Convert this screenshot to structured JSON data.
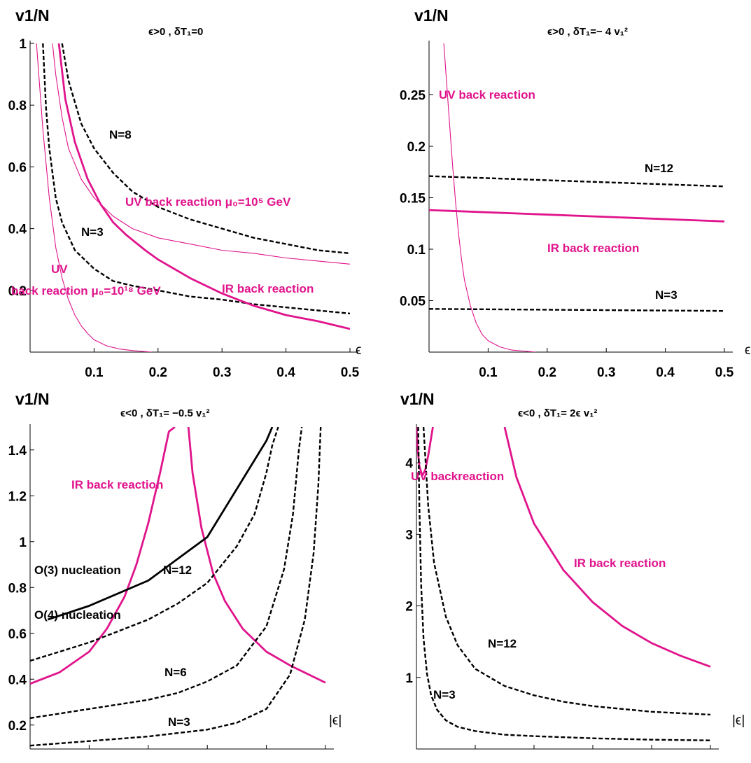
{
  "colors": {
    "black_curve": "#000000",
    "magenta_curve": "#e0148c"
  },
  "chart_data": [
    {
      "type": "line",
      "panel": "top-left",
      "title": "ϵ>0   ,  δT₁=0",
      "ylabel": "v1/N",
      "xlabel": "ϵ",
      "xlim": [
        0,
        0.5
      ],
      "ylim": [
        0,
        1
      ],
      "xticks": [
        "0.1",
        "0.2",
        "0.3",
        "0.4",
        "0.5"
      ],
      "yticks": [
        "0.2",
        "0.4",
        "0.6",
        "0.8",
        "1"
      ],
      "series": [
        {
          "style": "dashed",
          "color": "#000000",
          "x": [
            0.05,
            0.06,
            0.08,
            0.1,
            0.13,
            0.16,
            0.2,
            0.25,
            0.3,
            0.35,
            0.4,
            0.45,
            0.5
          ],
          "y": [
            1.0,
            0.88,
            0.74,
            0.66,
            0.58,
            0.52,
            0.47,
            0.43,
            0.4,
            0.37,
            0.35,
            0.33,
            0.32
          ]
        },
        {
          "style": "dashed",
          "color": "#000000",
          "x": [
            0.02,
            0.025,
            0.03,
            0.04,
            0.05,
            0.07,
            0.1,
            0.13,
            0.16,
            0.2,
            0.25,
            0.3,
            0.35,
            0.4,
            0.45,
            0.5
          ],
          "y": [
            1.0,
            0.79,
            0.66,
            0.5,
            0.42,
            0.33,
            0.27,
            0.23,
            0.215,
            0.2,
            0.18,
            0.17,
            0.155,
            0.145,
            0.135,
            0.125
          ]
        },
        {
          "style": "solid-thick",
          "color": "#e0148c",
          "x": [
            0.045,
            0.055,
            0.07,
            0.09,
            0.11,
            0.13,
            0.15,
            0.18,
            0.2,
            0.25,
            0.3,
            0.35,
            0.4,
            0.45,
            0.5
          ],
          "y": [
            1.0,
            0.82,
            0.68,
            0.56,
            0.48,
            0.42,
            0.38,
            0.33,
            0.3,
            0.24,
            0.19,
            0.15,
            0.12,
            0.1,
            0.075
          ]
        },
        {
          "style": "solid-thin",
          "color": "#e0148c",
          "x": [
            0.035,
            0.04,
            0.05,
            0.06,
            0.08,
            0.1,
            0.13,
            0.16,
            0.2,
            0.25,
            0.3,
            0.35,
            0.4,
            0.45,
            0.5
          ],
          "y": [
            1.0,
            0.9,
            0.76,
            0.66,
            0.56,
            0.5,
            0.44,
            0.4,
            0.37,
            0.35,
            0.33,
            0.32,
            0.305,
            0.295,
            0.285
          ]
        },
        {
          "style": "solid-thin",
          "color": "#e0148c",
          "x": [
            0.01,
            0.015,
            0.02,
            0.03,
            0.04,
            0.05,
            0.06,
            0.07,
            0.08,
            0.09,
            0.1,
            0.11,
            0.12,
            0.14,
            0.16,
            0.19
          ],
          "y": [
            1.0,
            0.86,
            0.72,
            0.5,
            0.34,
            0.24,
            0.17,
            0.12,
            0.085,
            0.06,
            0.04,
            0.03,
            0.02,
            0.01,
            0.005,
            0.0
          ]
        }
      ],
      "annotations": [
        {
          "text": "N=8",
          "color": "black"
        },
        {
          "text": "N=3",
          "color": "black"
        },
        {
          "text": "UV back reaction  μ₀=10⁵ GeV",
          "color": "magenta"
        },
        {
          "text": "UV",
          "color": "magenta"
        },
        {
          "text": "back reaction  μ₀=10¹⁸ GeV",
          "color": "magenta"
        },
        {
          "text": "IR back reaction",
          "color": "magenta"
        }
      ]
    },
    {
      "type": "line",
      "panel": "top-right",
      "title": "ϵ>0   ,  δT₁=− 4 v₁²",
      "ylabel": "v1/N",
      "xlabel": "ϵ",
      "xlim": [
        0,
        0.5
      ],
      "ylim": [
        0,
        0.3
      ],
      "xticks": [
        "0.1",
        "0.2",
        "0.3",
        "0.4",
        "0.5"
      ],
      "yticks": [
        "0.05",
        "0.1",
        "0.15",
        "0.2",
        "0.25"
      ],
      "series": [
        {
          "style": "dashed",
          "color": "#000000",
          "x": [
            0.0,
            0.5
          ],
          "y": [
            0.171,
            0.161
          ]
        },
        {
          "style": "solid-thick",
          "color": "#e0148c",
          "x": [
            0.0,
            0.5
          ],
          "y": [
            0.138,
            0.127
          ]
        },
        {
          "style": "dashed",
          "color": "#000000",
          "x": [
            0.0,
            0.5
          ],
          "y": [
            0.042,
            0.04
          ]
        },
        {
          "style": "solid-thin",
          "color": "#e0148c",
          "x": [
            0.025,
            0.03,
            0.035,
            0.04,
            0.045,
            0.05,
            0.055,
            0.06,
            0.07,
            0.08,
            0.09,
            0.1,
            0.12,
            0.14,
            0.16,
            0.18
          ],
          "y": [
            0.3,
            0.26,
            0.22,
            0.18,
            0.145,
            0.115,
            0.09,
            0.07,
            0.045,
            0.028,
            0.017,
            0.011,
            0.005,
            0.002,
            0.001,
            0.0
          ]
        }
      ],
      "annotations": [
        {
          "text": "UV back reaction",
          "color": "magenta"
        },
        {
          "text": "N=12",
          "color": "black"
        },
        {
          "text": "IR back reaction",
          "color": "magenta"
        },
        {
          "text": "N=3",
          "color": "black"
        }
      ]
    },
    {
      "type": "line",
      "panel": "bottom-left",
      "title": "ϵ<0   ,  δT₁= −0.5 v₁²",
      "ylabel": "v1/N",
      "xlabel": "|ϵ|",
      "xlim": [
        0,
        0.5
      ],
      "ylim": [
        0.1,
        1.5
      ],
      "xticks": [
        "0.1",
        "0.2",
        "0.3",
        "0.4",
        "0.5"
      ],
      "yticks": [
        "0.2",
        "0.4",
        "0.6",
        "0.8",
        "1",
        "1.2",
        "1.4"
      ],
      "series": [
        {
          "style": "solid-thick",
          "color": "#e0148c",
          "x": [
            0.0,
            0.05,
            0.1,
            0.13,
            0.16,
            0.18,
            0.2,
            0.22,
            0.235,
            0.245
          ],
          "y": [
            0.38,
            0.43,
            0.52,
            0.62,
            0.76,
            0.9,
            1.08,
            1.3,
            1.48,
            1.5
          ]
        },
        {
          "style": "solid-thick",
          "color": "#e0148c",
          "x": [
            0.268,
            0.275,
            0.29,
            0.31,
            0.33,
            0.36,
            0.4,
            0.44,
            0.48,
            0.5
          ],
          "y": [
            1.5,
            1.3,
            1.06,
            0.86,
            0.74,
            0.62,
            0.52,
            0.46,
            0.41,
            0.385
          ]
        },
        {
          "style": "solid-thick",
          "color": "#000000",
          "x": [
            0.03,
            0.1,
            0.2,
            0.3,
            0.4,
            0.41
          ],
          "y": [
            0.66,
            0.72,
            0.83,
            1.02,
            1.44,
            1.5
          ]
        },
        {
          "style": "dashed",
          "color": "#000000",
          "x": [
            0.0,
            0.05,
            0.1,
            0.15,
            0.2,
            0.25,
            0.3,
            0.35,
            0.38,
            0.4,
            0.41,
            0.42
          ],
          "y": [
            0.48,
            0.52,
            0.56,
            0.61,
            0.66,
            0.73,
            0.82,
            0.98,
            1.12,
            1.3,
            1.42,
            1.5
          ]
        },
        {
          "style": "dashed",
          "color": "#000000",
          "x": [
            0.0,
            0.05,
            0.1,
            0.15,
            0.2,
            0.25,
            0.3,
            0.35,
            0.4,
            0.43,
            0.445,
            0.455,
            0.46
          ],
          "y": [
            0.23,
            0.25,
            0.27,
            0.29,
            0.31,
            0.34,
            0.39,
            0.46,
            0.63,
            0.88,
            1.12,
            1.4,
            1.5
          ]
        },
        {
          "style": "dashed",
          "color": "#000000",
          "x": [
            0.0,
            0.1,
            0.2,
            0.3,
            0.35,
            0.4,
            0.44,
            0.465,
            0.48,
            0.488,
            0.492
          ],
          "y": [
            0.11,
            0.13,
            0.15,
            0.18,
            0.21,
            0.27,
            0.42,
            0.66,
            0.95,
            1.25,
            1.5
          ]
        }
      ],
      "annotations": [
        {
          "text": "IR back reaction",
          "color": "magenta"
        },
        {
          "text": "O(3) nucleation",
          "color": "black"
        },
        {
          "text": "N=12",
          "color": "black"
        },
        {
          "text": "O(4) nucleation",
          "color": "black"
        },
        {
          "text": "N=6",
          "color": "black"
        },
        {
          "text": "N=3",
          "color": "black"
        }
      ]
    },
    {
      "type": "line",
      "panel": "bottom-right",
      "title": "ϵ<0   ,  δT₁= 2ϵ v₁²",
      "ylabel": "v1/N",
      "xlabel": "|ϵ|",
      "xlim": [
        0,
        0.5
      ],
      "ylim": [
        0,
        4.5
      ],
      "xticks": [
        "0.1",
        "0.2",
        "0.3",
        "0.4",
        "0.5"
      ],
      "yticks": [
        "1",
        "2",
        "3",
        "4"
      ],
      "series": [
        {
          "style": "solid-thick",
          "color": "#e0148c",
          "x": [
            0.0,
            0.002,
            0.005,
            0.01,
            0.015,
            0.02,
            0.025,
            0.028
          ],
          "y": [
            4.5,
            4.2,
            3.95,
            3.82,
            3.9,
            4.1,
            4.35,
            4.5
          ]
        },
        {
          "style": "solid-thick",
          "color": "#e0148c",
          "x": [
            0.15,
            0.17,
            0.2,
            0.25,
            0.3,
            0.35,
            0.4,
            0.45,
            0.5
          ],
          "y": [
            4.5,
            3.8,
            3.15,
            2.5,
            2.05,
            1.72,
            1.48,
            1.3,
            1.15
          ]
        },
        {
          "style": "dashed",
          "color": "#000000",
          "x": [
            0.012,
            0.02,
            0.03,
            0.05,
            0.07,
            0.1,
            0.15,
            0.2,
            0.25,
            0.3,
            0.35,
            0.4,
            0.45,
            0.5
          ],
          "y": [
            4.5,
            3.4,
            2.6,
            1.85,
            1.45,
            1.12,
            0.88,
            0.75,
            0.66,
            0.6,
            0.56,
            0.52,
            0.5,
            0.48
          ]
        },
        {
          "style": "dashed",
          "color": "#000000",
          "x": [
            0.003,
            0.005,
            0.008,
            0.012,
            0.018,
            0.025,
            0.035,
            0.05,
            0.07,
            0.1,
            0.15,
            0.2,
            0.3,
            0.4,
            0.5
          ],
          "y": [
            4.5,
            3.4,
            2.3,
            1.55,
            1.05,
            0.75,
            0.55,
            0.4,
            0.31,
            0.25,
            0.2,
            0.18,
            0.15,
            0.13,
            0.12
          ]
        }
      ],
      "annotations": [
        {
          "text": "UV backreaction",
          "color": "magenta"
        },
        {
          "text": "IR back reaction",
          "color": "magenta"
        },
        {
          "text": "N=12",
          "color": "black"
        },
        {
          "text": "N=3",
          "color": "black"
        }
      ]
    }
  ]
}
